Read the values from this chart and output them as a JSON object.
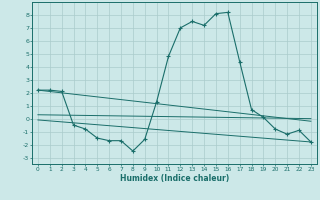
{
  "xlabel": "Humidex (Indice chaleur)",
  "background_color": "#cce8e8",
  "grid_color": "#aacccc",
  "line_color": "#1a6e6a",
  "xlim": [
    -0.5,
    23.5
  ],
  "ylim": [
    -3.5,
    9.0
  ],
  "xticks": [
    0,
    1,
    2,
    3,
    4,
    5,
    6,
    7,
    8,
    9,
    10,
    11,
    12,
    13,
    14,
    15,
    16,
    17,
    18,
    19,
    20,
    21,
    22,
    23
  ],
  "yticks": [
    -3,
    -2,
    -1,
    0,
    1,
    2,
    3,
    4,
    5,
    6,
    7,
    8
  ],
  "series_main": {
    "x": [
      0,
      1,
      2,
      3,
      4,
      5,
      6,
      7,
      8,
      9,
      10,
      11,
      12,
      13,
      14,
      15,
      16,
      17,
      18,
      19,
      20,
      21,
      22,
      23
    ],
    "y": [
      2.2,
      2.2,
      2.1,
      -0.5,
      -0.8,
      -1.5,
      -1.7,
      -1.7,
      -2.5,
      -1.6,
      1.3,
      4.8,
      7.0,
      7.5,
      7.2,
      8.1,
      8.2,
      4.4,
      0.7,
      0.1,
      -0.8,
      -1.2,
      -0.9,
      -1.8
    ]
  },
  "series_extra": [
    {
      "x": [
        0,
        23
      ],
      "y": [
        2.2,
        -0.2
      ]
    },
    {
      "x": [
        0,
        23
      ],
      "y": [
        0.3,
        0.0
      ]
    },
    {
      "x": [
        0,
        23
      ],
      "y": [
        -0.1,
        -1.8
      ]
    }
  ]
}
